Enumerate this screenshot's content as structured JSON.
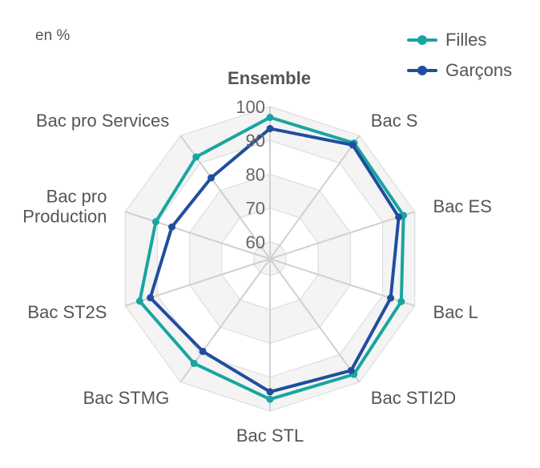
{
  "unit_label": "en %",
  "chart_data": {
    "type": "radar",
    "title": "Ensemble",
    "categories": [
      "Ensemble",
      "Bac S",
      "Bac ES",
      "Bac L",
      "Bac STI2D",
      "Bac STL",
      "Bac STMG",
      "Bac ST2S",
      "Bac pro Production",
      "Bac pro Services"
    ],
    "category_lines": [
      [
        "Ensemble"
      ],
      [
        "Bac S"
      ],
      [
        "Bac ES"
      ],
      [
        "Bac L"
      ],
      [
        "Bac STI2D"
      ],
      [
        "Bac STL"
      ],
      [
        "Bac STMG"
      ],
      [
        "Bac ST2S"
      ],
      [
        "Bac pro",
        "Production"
      ],
      [
        "Bac pro Services"
      ]
    ],
    "radial_ticks": [
      60,
      70,
      80,
      90,
      100
    ],
    "rlim": [
      55,
      100
    ],
    "grid": true,
    "legend_position": "top-right",
    "series": [
      {
        "name": "Filles",
        "color": "#1aa5a0",
        "values": [
          96.8,
          97.3,
          96.5,
          95.8,
          97.2,
          96.5,
          93.2,
          95.5,
          90.5,
          92.2
        ]
      },
      {
        "name": "Garçons",
        "color": "#1f4e9e",
        "values": [
          93.5,
          96.6,
          95.0,
          92.5,
          95.8,
          94.3,
          88.8,
          92.2,
          85.5,
          84.6
        ]
      }
    ]
  }
}
